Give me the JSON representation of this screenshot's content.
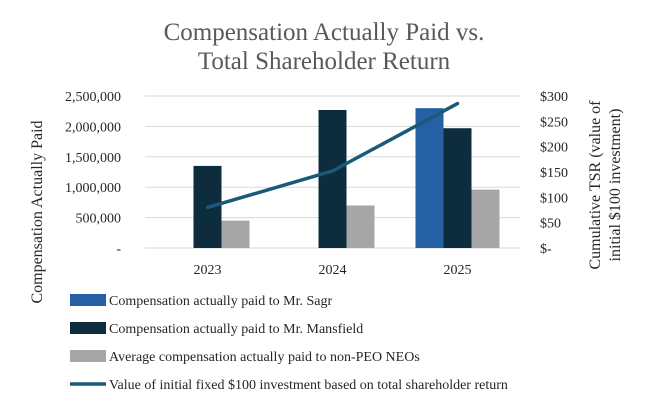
{
  "chart_data": {
    "type": "bar",
    "title": [
      "Compensation Actually Paid vs.",
      "Total Shareholder Return"
    ],
    "categories": [
      "2023",
      "2024",
      "2025"
    ],
    "ylabel": "Compensation Actually Paid",
    "y2label": [
      "Cumulative TSR (value of",
      "initial $100 investment)"
    ],
    "ylim": [
      0,
      2500000
    ],
    "y2lim": [
      0,
      300
    ],
    "yticks": [
      {
        "value": 0,
        "label": "-"
      },
      {
        "value": 500000,
        "label": "500,000"
      },
      {
        "value": 1000000,
        "label": "1,000,000"
      },
      {
        "value": 1500000,
        "label": "1,500,000"
      },
      {
        "value": 2000000,
        "label": "2,000,000"
      },
      {
        "value": 2500000,
        "label": "2,500,000"
      }
    ],
    "y2ticks": [
      {
        "value": 0,
        "label": "$-"
      },
      {
        "value": 50,
        "label": "$50"
      },
      {
        "value": 100,
        "label": "$100"
      },
      {
        "value": 150,
        "label": "$150"
      },
      {
        "value": 200,
        "label": "$200"
      },
      {
        "value": 250,
        "label": "$250"
      },
      {
        "value": 300,
        "label": "$300"
      }
    ],
    "series": [
      {
        "name": "Compensation actually paid to Mr. Sagr",
        "kind": "bar",
        "axis": "left",
        "color": "#2660a4",
        "values": [
          null,
          null,
          2300000
        ]
      },
      {
        "name": "Compensation actually paid to Mr. Mansfield",
        "kind": "bar",
        "axis": "left",
        "color": "#0d2d3f",
        "values": [
          1350000,
          2270000,
          1970000
        ]
      },
      {
        "name": "Average compensation actually paid to non-PEO NEOs",
        "kind": "bar",
        "axis": "left",
        "color": "#a6a6a6",
        "values": [
          450000,
          700000,
          960000
        ]
      },
      {
        "name": "Value of initial fixed $100 investment based on total shareholder return",
        "kind": "line",
        "axis": "right",
        "color": "#1a5a78",
        "values": [
          80,
          152,
          285
        ]
      }
    ],
    "grid": true,
    "legend_position": "bottom"
  }
}
